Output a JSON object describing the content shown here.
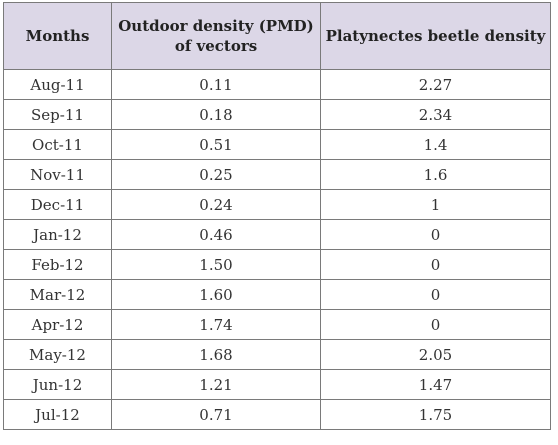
{
  "table": {
    "headers": [
      "Months",
      "Outdoor density (PMD)\nof vectors",
      "Platynectes beetle density"
    ],
    "rows": [
      [
        "Aug-11",
        "0.11",
        "2.27"
      ],
      [
        "Sep-11",
        "0.18",
        "2.34"
      ],
      [
        "Oct-11",
        "0.51",
        "1.4"
      ],
      [
        "Nov-11",
        "0.25",
        "1.6"
      ],
      [
        "Dec-11",
        "0.24",
        "1"
      ],
      [
        "Jan-12",
        "0.46",
        "0"
      ],
      [
        "Feb-12",
        "1.50",
        "0"
      ],
      [
        "Mar-12",
        "1.60",
        "0"
      ],
      [
        "Apr-12",
        "1.74",
        "0"
      ],
      [
        "May-12",
        "1.68",
        "2.05"
      ],
      [
        "Jun-12",
        "1.21",
        "1.47"
      ],
      [
        "Jul-12",
        "0.71",
        "1.75"
      ]
    ]
  },
  "colors": {
    "header_bg": "#dcd7e7",
    "border": "#7a7a7a"
  }
}
